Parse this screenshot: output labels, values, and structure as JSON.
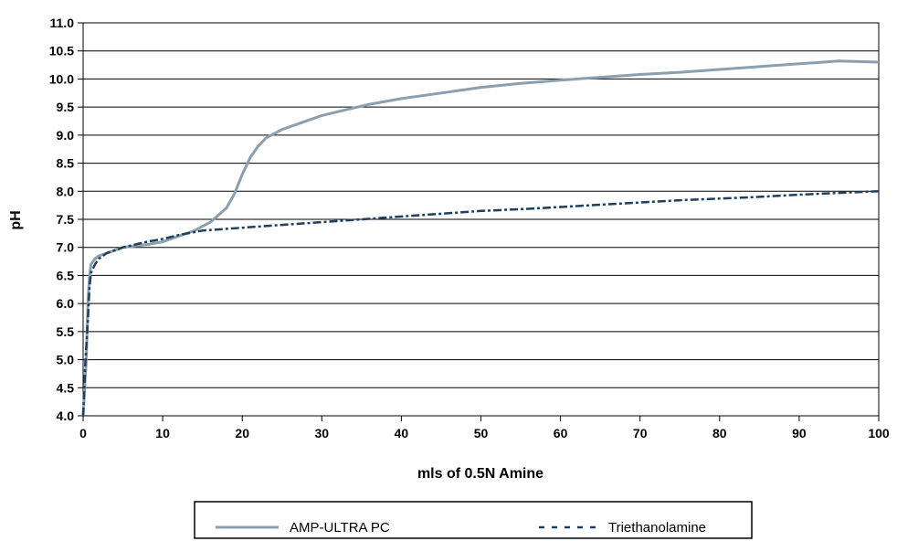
{
  "chart_data": {
    "type": "line",
    "title": "",
    "xlabel": "mls of 0.5N Amine",
    "ylabel": "pH",
    "xlim": [
      0,
      100
    ],
    "ylim": [
      4.0,
      11.0
    ],
    "x_ticks": [
      "0",
      "10",
      "20",
      "30",
      "40",
      "50",
      "60",
      "70",
      "80",
      "90",
      "100"
    ],
    "y_ticks": [
      "4.0",
      "4.5",
      "5.0",
      "5.5",
      "6.0",
      "6.5",
      "7.0",
      "7.5",
      "8.0",
      "8.5",
      "9.0",
      "9.5",
      "10.0",
      "10.5",
      "11.0"
    ],
    "grid": "horizontal",
    "legend": "bottom",
    "series": [
      {
        "name": "AMP-ULTRA PC",
        "color": "#8a9faf",
        "style": "solid",
        "x": [
          0,
          0.2,
          0.4,
          0.6,
          0.8,
          1,
          1.5,
          2,
          3,
          5,
          8,
          10,
          12,
          14,
          16,
          18,
          19,
          20,
          21,
          22,
          23,
          25,
          27,
          30,
          33,
          36,
          40,
          45,
          50,
          55,
          60,
          65,
          70,
          75,
          80,
          85,
          90,
          95,
          100
        ],
        "values": [
          4.0,
          4.5,
          5.0,
          6.0,
          6.5,
          6.7,
          6.8,
          6.85,
          6.9,
          7.0,
          7.05,
          7.1,
          7.2,
          7.3,
          7.45,
          7.7,
          7.95,
          8.3,
          8.6,
          8.8,
          8.95,
          9.1,
          9.2,
          9.35,
          9.45,
          9.55,
          9.65,
          9.75,
          9.85,
          9.92,
          9.98,
          10.03,
          10.08,
          10.12,
          10.17,
          10.22,
          10.27,
          10.32,
          10.3
        ]
      },
      {
        "name": "Triethanolamine",
        "color": "#1f3f5f",
        "style": "dashed",
        "x": [
          0,
          0.3,
          0.6,
          0.8,
          1,
          1.5,
          2,
          3,
          5,
          8,
          10,
          12,
          15,
          18,
          20,
          25,
          30,
          35,
          40,
          45,
          50,
          55,
          60,
          65,
          70,
          75,
          80,
          85,
          90,
          95,
          100
        ],
        "values": [
          4.0,
          5.0,
          5.7,
          6.3,
          6.55,
          6.7,
          6.8,
          6.9,
          7.0,
          7.1,
          7.15,
          7.22,
          7.3,
          7.33,
          7.35,
          7.4,
          7.45,
          7.5,
          7.55,
          7.6,
          7.65,
          7.68,
          7.72,
          7.76,
          7.8,
          7.84,
          7.87,
          7.9,
          7.94,
          7.97,
          8.0
        ]
      }
    ]
  }
}
